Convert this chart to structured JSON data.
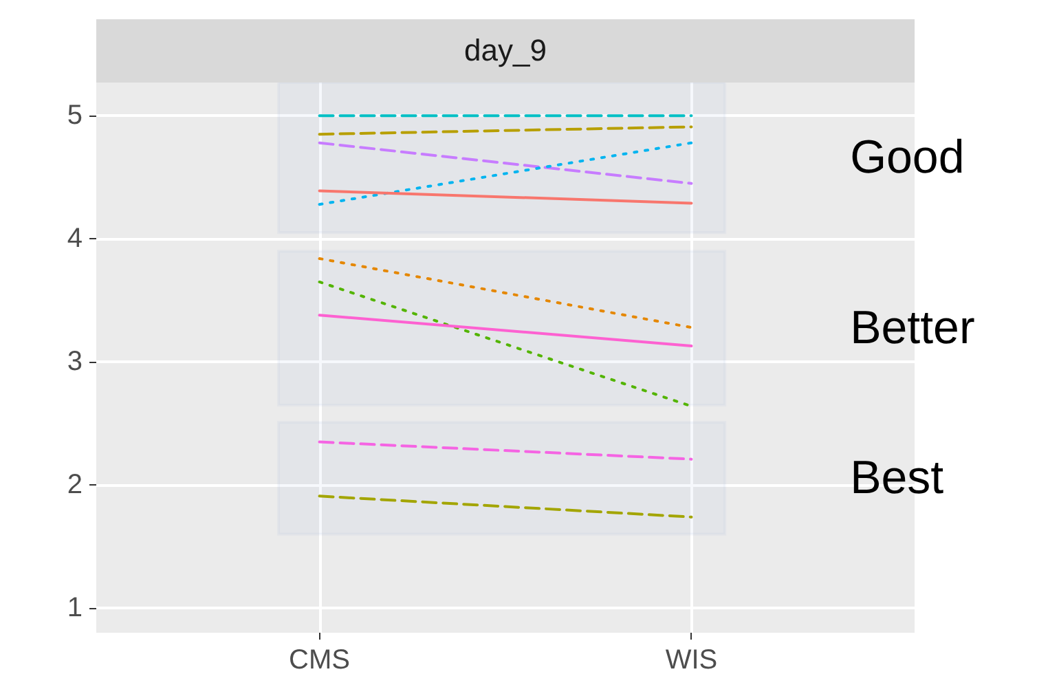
{
  "chart_data": {
    "type": "line",
    "title": "day_9",
    "categories": [
      "CMS",
      "WIS"
    ],
    "series": [
      {
        "color": "#00bfc4",
        "line_style": "dashed",
        "values": [
          5.0,
          5.0
        ]
      },
      {
        "color": "#b79f00",
        "line_style": "dashed",
        "values": [
          4.85,
          4.91
        ]
      },
      {
        "color": "#c77cff",
        "line_style": "dashed",
        "values": [
          4.78,
          4.45
        ]
      },
      {
        "color": "#00b4f0",
        "line_style": "dotted",
        "values": [
          4.28,
          4.78
        ]
      },
      {
        "color": "#f8766d",
        "line_style": "solid",
        "values": [
          4.39,
          4.29
        ]
      },
      {
        "color": "#e58700",
        "line_style": "dotted",
        "values": [
          3.84,
          3.28
        ]
      },
      {
        "color": "#53b400",
        "line_style": "dotted",
        "values": [
          3.65,
          2.64
        ]
      },
      {
        "color": "#fd61d1",
        "line_style": "solid",
        "values": [
          3.38,
          3.13
        ]
      },
      {
        "color": "#f564e3",
        "line_style": "dashed",
        "values": [
          2.35,
          2.21
        ]
      },
      {
        "color": "#a3a500",
        "line_style": "dashed",
        "values": [
          1.91,
          1.74
        ]
      }
    ],
    "ylim": [
      0.8,
      5.27
    ],
    "yticks": [
      1,
      2,
      3,
      4,
      5
    ],
    "grid": true,
    "marker": "none",
    "bands": [
      {
        "axis": "y",
        "from": 4.05,
        "to": 5.27,
        "label": "Good",
        "color": "#8eaadb"
      },
      {
        "axis": "y",
        "from": 2.65,
        "to": 3.9,
        "label": "Better",
        "color": "#8eaadb"
      },
      {
        "axis": "y",
        "from": 1.6,
        "to": 2.51,
        "label": "Best",
        "color": "#8eaadb"
      }
    ]
  }
}
